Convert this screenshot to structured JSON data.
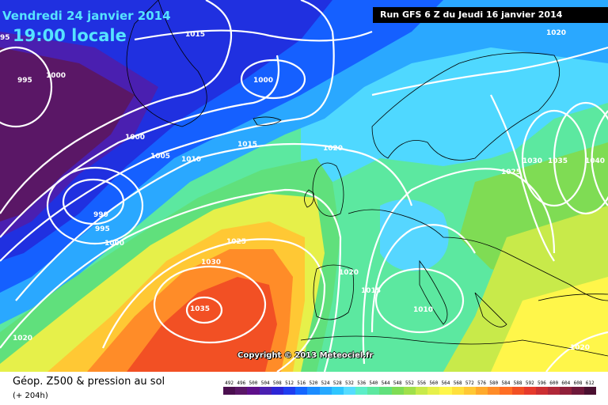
{
  "header": {
    "date": "Vendredi 24 janvier 2014",
    "time": "19:00 locale",
    "run": "Run GFS 6 Z du Jeudi 16 janvier 2014"
  },
  "copyright": "Copyright © 2013 Meteociel.fr",
  "legend": {
    "title": "Géop. Z500 & pression au sol",
    "subtitle": "(+ 204h)",
    "ticks": [
      "492",
      "496",
      "500",
      "504",
      "508",
      "512",
      "516",
      "520",
      "524",
      "528",
      "532",
      "536",
      "540",
      "544",
      "548",
      "552",
      "556",
      "560",
      "564",
      "568",
      "572",
      "576",
      "580",
      "584",
      "588",
      "592",
      "596",
      "600",
      "604",
      "608",
      "612"
    ],
    "colors": [
      "#4b0f4f",
      "#5a1766",
      "#5e0f8a",
      "#4a1fb0",
      "#2d25d6",
      "#1f3df0",
      "#1466ff",
      "#1b8cff",
      "#26a9ff",
      "#2ec6ff",
      "#55dcff",
      "#5ceec8",
      "#5ce8a0",
      "#60e07c",
      "#7fdc54",
      "#a0e04a",
      "#c8ea4a",
      "#e6f04a",
      "#fff64a",
      "#ffe03c",
      "#ffc834",
      "#ffaa2c",
      "#ff8c28",
      "#ff6e24",
      "#f25024",
      "#e63a2c",
      "#cc2f32",
      "#b02838",
      "#90203a",
      "#6e183a",
      "#4a1030"
    ]
  },
  "isobars": [
    "995",
    "1000",
    "1015",
    "1000",
    "1000",
    "1005",
    "1010",
    "1015",
    "1020",
    "990",
    "995",
    "1000",
    "1025",
    "1030",
    "1035",
    "1020",
    "1015",
    "1010",
    "1020",
    "1025",
    "1030",
    "1035",
    "1040",
    "1020",
    "1020",
    "95"
  ]
}
